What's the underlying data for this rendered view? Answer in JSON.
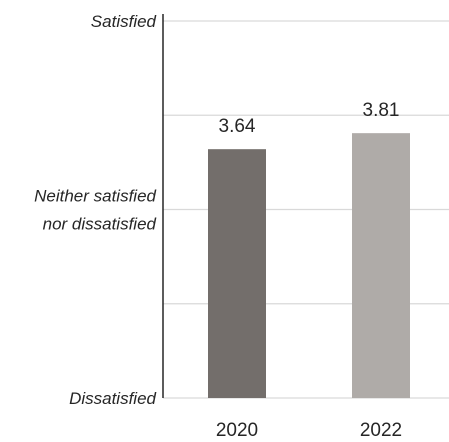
{
  "chart_data": {
    "type": "bar",
    "categories": [
      "2020",
      "2022"
    ],
    "values": [
      3.64,
      3.81
    ],
    "value_labels": [
      "3.64",
      "3.81"
    ],
    "ylim": [
      1,
      5
    ],
    "yticks": [
      1,
      2,
      3,
      4,
      5
    ],
    "ytick_labels": [
      {
        "value": 5,
        "lines": [
          "Satisfied"
        ]
      },
      {
        "value": 3,
        "lines": [
          "Neither satisfied",
          "nor dissatisfied"
        ]
      },
      {
        "value": 1,
        "lines": [
          "Dissatisfied"
        ]
      }
    ],
    "bar_colors": [
      "#736e6b",
      "#afaba8"
    ],
    "grid": true,
    "legend": "none",
    "title": "",
    "xlabel": "",
    "ylabel": ""
  }
}
